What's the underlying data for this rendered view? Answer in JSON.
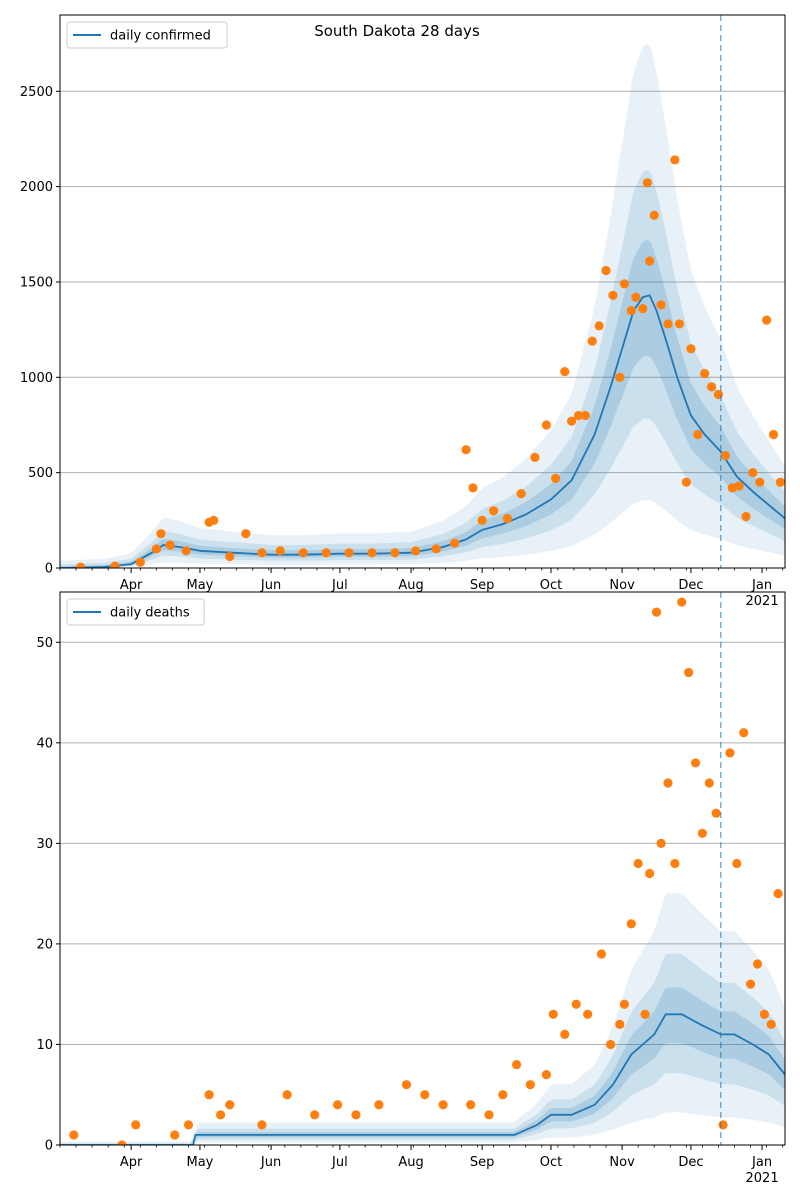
{
  "figure": {
    "title": "South Dakota 28 days"
  },
  "colors": {
    "line": "#1f77b4",
    "points": "#ff7f0e",
    "band": "#1f77b4",
    "grid": "#b0b0b0",
    "axis": "#000000"
  },
  "chart_data": [
    {
      "type": "line",
      "title": "South Dakota 28 days",
      "legend": "top-left",
      "grid": "y",
      "xlabel": "",
      "ylabel": "",
      "xlim": [
        "2020-03-01",
        "2021-01-11"
      ],
      "ylim": [
        0,
        2900
      ],
      "yticks": [
        0,
        500,
        1000,
        1500,
        2000,
        2500
      ],
      "xticks": [
        {
          "date": "2020-04-01",
          "label": "Apr"
        },
        {
          "date": "2020-05-01",
          "label": "May"
        },
        {
          "date": "2020-06-01",
          "label": "Jun"
        },
        {
          "date": "2020-07-01",
          "label": "Jul"
        },
        {
          "date": "2020-08-01",
          "label": "Aug"
        },
        {
          "date": "2020-09-01",
          "label": "Sep"
        },
        {
          "date": "2020-10-01",
          "label": "Oct"
        },
        {
          "date": "2020-11-01",
          "label": "Nov"
        },
        {
          "date": "2020-12-01",
          "label": "Dec"
        },
        {
          "date": "2021-01-01",
          "label": "Jan\n2021"
        }
      ],
      "forecast_start": "2020-12-14",
      "series": [
        {
          "name": "daily confirmed",
          "kind": "line",
          "x": [
            "2020-03-01",
            "2020-03-20",
            "2020-04-01",
            "2020-04-10",
            "2020-04-15",
            "2020-04-22",
            "2020-05-01",
            "2020-05-15",
            "2020-06-01",
            "2020-06-15",
            "2020-07-01",
            "2020-07-15",
            "2020-08-01",
            "2020-08-15",
            "2020-08-25",
            "2020-09-01",
            "2020-09-10",
            "2020-09-20",
            "2020-10-01",
            "2020-10-10",
            "2020-10-20",
            "2020-10-27",
            "2020-11-01",
            "2020-11-06",
            "2020-11-10",
            "2020-11-13",
            "2020-11-16",
            "2020-11-20",
            "2020-11-25",
            "2020-12-01",
            "2020-12-07",
            "2020-12-14",
            "2020-12-21",
            "2020-12-28",
            "2021-01-04",
            "2021-01-11"
          ],
          "y": [
            0,
            5,
            20,
            80,
            120,
            110,
            90,
            80,
            70,
            70,
            75,
            75,
            80,
            110,
            150,
            200,
            230,
            280,
            360,
            460,
            700,
            950,
            1150,
            1350,
            1420,
            1430,
            1350,
            1200,
            1000,
            800,
            700,
            610,
            480,
            400,
            330,
            260
          ]
        },
        {
          "name": "",
          "kind": "scatter",
          "x": [
            "2020-03-10",
            "2020-03-25",
            "2020-04-05",
            "2020-04-12",
            "2020-04-14",
            "2020-04-18",
            "2020-04-25",
            "2020-05-05",
            "2020-05-07",
            "2020-05-14",
            "2020-05-21",
            "2020-05-28",
            "2020-06-05",
            "2020-06-15",
            "2020-06-25",
            "2020-07-05",
            "2020-07-15",
            "2020-07-25",
            "2020-08-03",
            "2020-08-12",
            "2020-08-20",
            "2020-08-25",
            "2020-08-28",
            "2020-09-01",
            "2020-09-06",
            "2020-09-12",
            "2020-09-18",
            "2020-09-24",
            "2020-09-29",
            "2020-10-03",
            "2020-10-07",
            "2020-10-10",
            "2020-10-13",
            "2020-10-16",
            "2020-10-19",
            "2020-10-22",
            "2020-10-25",
            "2020-10-28",
            "2020-10-31",
            "2020-11-02",
            "2020-11-05",
            "2020-11-07",
            "2020-11-10",
            "2020-11-12",
            "2020-11-13",
            "2020-11-15",
            "2020-11-18",
            "2020-11-21",
            "2020-11-24",
            "2020-11-26",
            "2020-11-29",
            "2020-12-01",
            "2020-12-04",
            "2020-12-07",
            "2020-12-10",
            "2020-12-13",
            "2020-12-16",
            "2020-12-19",
            "2020-12-22",
            "2020-12-25",
            "2020-12-28",
            "2020-12-31",
            "2021-01-03",
            "2021-01-06",
            "2021-01-09"
          ],
          "y": [
            5,
            10,
            30,
            100,
            180,
            120,
            90,
            240,
            250,
            60,
            180,
            80,
            90,
            80,
            80,
            80,
            80,
            80,
            90,
            100,
            130,
            620,
            420,
            250,
            300,
            260,
            390,
            580,
            750,
            470,
            1030,
            770,
            800,
            800,
            1190,
            1270,
            1560,
            1430,
            1000,
            1490,
            1350,
            1420,
            1360,
            2020,
            1610,
            1850,
            1380,
            1280,
            2140,
            1280,
            450,
            1150,
            700,
            1020,
            950,
            910,
            590,
            420,
            430,
            270,
            500,
            450,
            1300,
            700,
            450
          ]
        }
      ]
    },
    {
      "type": "line",
      "title": "",
      "legend": "top-left",
      "grid": "y",
      "xlabel": "",
      "ylabel": "",
      "xlim": [
        "2020-03-01",
        "2021-01-11"
      ],
      "ylim": [
        0,
        55
      ],
      "yticks": [
        0,
        10,
        20,
        30,
        40,
        50
      ],
      "xticks": [
        {
          "date": "2020-04-01",
          "label": "Apr"
        },
        {
          "date": "2020-05-01",
          "label": "May"
        },
        {
          "date": "2020-06-01",
          "label": "Jun"
        },
        {
          "date": "2020-07-01",
          "label": "Jul"
        },
        {
          "date": "2020-08-01",
          "label": "Aug"
        },
        {
          "date": "2020-09-01",
          "label": "Sep"
        },
        {
          "date": "2020-10-01",
          "label": "Oct"
        },
        {
          "date": "2020-11-01",
          "label": "Nov"
        },
        {
          "date": "2020-12-01",
          "label": "Dec"
        },
        {
          "date": "2021-01-01",
          "label": "Jan\n2021"
        }
      ],
      "forecast_start": "2020-12-14",
      "series": [
        {
          "name": "daily deaths",
          "kind": "line",
          "x": [
            "2020-03-01",
            "2020-04-28",
            "2020-04-29",
            "2020-08-01",
            "2020-08-20",
            "2020-09-01",
            "2020-09-15",
            "2020-09-25",
            "2020-10-01",
            "2020-10-10",
            "2020-10-20",
            "2020-10-28",
            "2020-11-05",
            "2020-11-10",
            "2020-11-15",
            "2020-11-20",
            "2020-11-27",
            "2020-12-05",
            "2020-12-14",
            "2020-12-20",
            "2020-12-28",
            "2021-01-04",
            "2021-01-11"
          ],
          "y": [
            0,
            0,
            1,
            1,
            1,
            1,
            1,
            2,
            3,
            3,
            4,
            6,
            9,
            10,
            11,
            13,
            13,
            12,
            11,
            11,
            10,
            9,
            7
          ]
        },
        {
          "name": "",
          "kind": "scatter",
          "x": [
            "2020-03-07",
            "2020-03-28",
            "2020-04-03",
            "2020-04-20",
            "2020-04-26",
            "2020-05-05",
            "2020-05-10",
            "2020-05-14",
            "2020-05-28",
            "2020-06-08",
            "2020-06-20",
            "2020-06-30",
            "2020-07-08",
            "2020-07-18",
            "2020-07-30",
            "2020-08-07",
            "2020-08-15",
            "2020-08-27",
            "2020-09-04",
            "2020-09-10",
            "2020-09-16",
            "2020-09-22",
            "2020-09-29",
            "2020-10-02",
            "2020-10-07",
            "2020-10-12",
            "2020-10-17",
            "2020-10-23",
            "2020-10-27",
            "2020-10-31",
            "2020-11-02",
            "2020-11-05",
            "2020-11-08",
            "2020-11-11",
            "2020-11-13",
            "2020-11-16",
            "2020-11-18",
            "2020-11-21",
            "2020-11-24",
            "2020-11-27",
            "2020-11-30",
            "2020-12-03",
            "2020-12-06",
            "2020-12-09",
            "2020-12-12",
            "2020-12-15",
            "2020-12-18",
            "2020-12-21",
            "2020-12-24",
            "2020-12-27",
            "2020-12-30",
            "2021-01-02",
            "2021-01-05",
            "2021-01-08"
          ],
          "y": [
            1,
            0,
            2,
            1,
            2,
            5,
            3,
            4,
            2,
            5,
            3,
            4,
            3,
            4,
            6,
            5,
            4,
            4,
            3,
            5,
            8,
            6,
            7,
            13,
            11,
            14,
            13,
            19,
            10,
            12,
            14,
            22,
            28,
            13,
            27,
            53,
            30,
            36,
            28,
            54,
            47,
            38,
            31,
            36,
            33,
            2,
            39,
            28,
            41,
            16,
            18,
            13,
            12,
            25
          ]
        }
      ]
    }
  ]
}
